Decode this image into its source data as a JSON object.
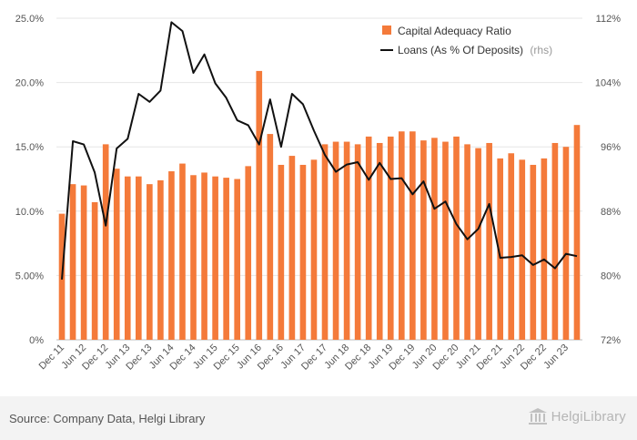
{
  "chart_data": {
    "type": "bar+line",
    "title": "",
    "categories": [
      "Dec 11",
      "Mar 12",
      "Jun 12",
      "Sep 12",
      "Dec 12",
      "Mar 13",
      "Jun 13",
      "Sep 13",
      "Dec 13",
      "Mar 14",
      "Jun 14",
      "Sep 14",
      "Dec 14",
      "Mar 15",
      "Jun 15",
      "Sep 15",
      "Dec 15",
      "Mar 16",
      "Jun 16",
      "Sep 16",
      "Dec 16",
      "Mar 17",
      "Jun 17",
      "Sep 17",
      "Dec 17",
      "Mar 18",
      "Jun 18",
      "Sep 18",
      "Dec 18",
      "Mar 19",
      "Jun 19",
      "Sep 19",
      "Dec 19",
      "Mar 20",
      "Jun 20",
      "Sep 20",
      "Dec 20",
      "Mar 21",
      "Jun 21",
      "Sep 21",
      "Dec 21",
      "Mar 22",
      "Jun 22",
      "Sep 22",
      "Dec 22",
      "Mar 23",
      "Jun 23",
      "Sep 23"
    ],
    "x_tick_labels": [
      "Dec 11",
      "Jun 12",
      "Dec 12",
      "Jun 13",
      "Dec 13",
      "Jun 14",
      "Dec 14",
      "Jun 15",
      "Dec 15",
      "Jun 16",
      "Dec 16",
      "Jun 17",
      "Dec 17",
      "Jun 18",
      "Dec 18",
      "Jun 19",
      "Dec 19",
      "Jun 20",
      "Dec 20",
      "Jun 21",
      "Dec 21",
      "Jun 22",
      "Dec 22",
      "Jun 23"
    ],
    "series": [
      {
        "name": "Capital Adequacy Ratio",
        "type": "bar",
        "axis": "left",
        "color": "#f47a3a",
        "values": [
          9.8,
          12.1,
          12.0,
          10.7,
          15.2,
          13.3,
          12.7,
          12.7,
          12.1,
          12.4,
          13.1,
          13.7,
          12.8,
          13.0,
          12.7,
          12.6,
          12.5,
          13.5,
          20.9,
          16.0,
          13.6,
          14.3,
          13.6,
          14.0,
          15.2,
          15.4,
          15.4,
          15.2,
          15.8,
          15.3,
          15.8,
          16.2,
          16.2,
          15.5,
          15.7,
          15.4,
          15.8,
          15.2,
          14.9,
          15.3,
          14.1,
          14.5,
          14.0,
          13.6,
          14.1,
          15.3,
          15.0,
          16.7
        ]
      },
      {
        "name": "Loans (As % Of Deposits)",
        "suffix": "(rhs)",
        "type": "line",
        "axis": "right",
        "color": "#111111",
        "values": [
          79.5,
          96.7,
          96.3,
          92.8,
          86.2,
          95.8,
          97.0,
          102.6,
          101.6,
          103.0,
          111.5,
          110.4,
          105.2,
          107.5,
          103.9,
          102.1,
          99.3,
          98.7,
          96.3,
          101.9,
          96.0,
          102.6,
          101.3,
          98.0,
          95.0,
          92.9,
          93.8,
          94.1,
          91.9,
          94.0,
          92.0,
          92.1,
          90.1,
          91.7,
          88.3,
          89.2,
          86.4,
          84.5,
          85.8,
          88.9,
          82.2,
          82.3,
          82.5,
          81.3,
          82.0,
          80.9,
          82.7,
          82.4
        ]
      }
    ],
    "y_left": {
      "min": 0,
      "max": 25,
      "tick_labels": [
        "0%",
        "5.00%",
        "10.0%",
        "15.0%",
        "20.0%",
        "25.0%"
      ]
    },
    "y_right": {
      "min": 72,
      "max": 112,
      "tick_labels": [
        "72%",
        "80%",
        "88%",
        "96%",
        "104%",
        "112%"
      ]
    },
    "legend_position": "top-right",
    "grid": "horizontal"
  },
  "footer": {
    "source": "Source: Company Data, Helgi Library",
    "brand": "HelgiLibrary"
  }
}
